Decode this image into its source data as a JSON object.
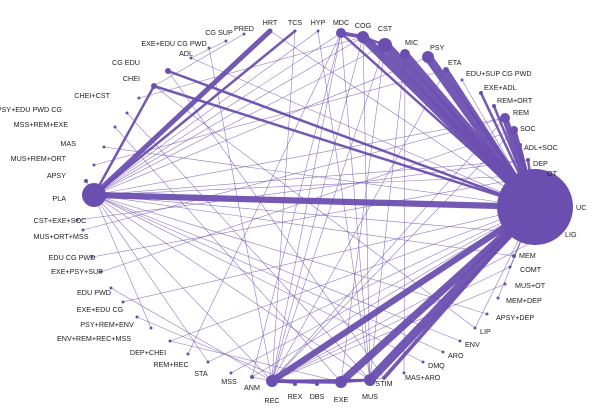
{
  "diagram": {
    "type": "network-meta-analysis",
    "colors": {
      "node": "#6b4fb0",
      "edge": "#6b4fb0",
      "label": "#222222"
    },
    "nodes": [
      {
        "id": "HRT",
        "label": "HRT"
      },
      {
        "id": "TCS",
        "label": "TCS"
      },
      {
        "id": "HYP",
        "label": "HYP"
      },
      {
        "id": "MDC",
        "label": "MDC"
      },
      {
        "id": "COG",
        "label": "COG"
      },
      {
        "id": "CST",
        "label": "CST"
      },
      {
        "id": "MIC",
        "label": "MIC"
      },
      {
        "id": "PSY",
        "label": "PSY"
      },
      {
        "id": "ETA",
        "label": "ETA"
      },
      {
        "id": "EDU+SUP CG PWD",
        "label": "EDU+SUP CG PWD"
      },
      {
        "id": "EXE+ADL",
        "label": "EXE+ADL"
      },
      {
        "id": "REM+ORT",
        "label": "REM+ORT"
      },
      {
        "id": "REM",
        "label": "REM"
      },
      {
        "id": "SOC",
        "label": "SOC"
      },
      {
        "id": "ADL+SOC",
        "label": "ADL+SOC"
      },
      {
        "id": "DEP",
        "label": "DEP"
      },
      {
        "id": "OT",
        "label": "OT"
      },
      {
        "id": "UC",
        "label": "UC"
      },
      {
        "id": "LIG",
        "label": "LIG"
      },
      {
        "id": "MEM",
        "label": "MEM"
      },
      {
        "id": "COMT",
        "label": "COMT"
      },
      {
        "id": "MUS+OT",
        "label": "MUS+OT"
      },
      {
        "id": "MEM+DEP",
        "label": "MEM+DEP"
      },
      {
        "id": "APSY+DEP",
        "label": "APSY+DEP"
      },
      {
        "id": "LIP",
        "label": "LIP"
      },
      {
        "id": "ENV",
        "label": "ENV"
      },
      {
        "id": "ARO",
        "label": "ARO"
      },
      {
        "id": "DMQ",
        "label": "DMQ"
      },
      {
        "id": "MAS+ARO",
        "label": "MAS+ARO"
      },
      {
        "id": "STIM",
        "label": "STIM"
      },
      {
        "id": "MUS",
        "label": "MUS"
      },
      {
        "id": "EXE",
        "label": "EXE"
      },
      {
        "id": "DBS",
        "label": "DBS"
      },
      {
        "id": "REX",
        "label": "REX"
      },
      {
        "id": "REC",
        "label": "REC"
      },
      {
        "id": "ANM",
        "label": "ANM"
      },
      {
        "id": "MSS",
        "label": "MSS"
      },
      {
        "id": "STA",
        "label": "STA"
      },
      {
        "id": "REM+REC",
        "label": "REM+REC"
      },
      {
        "id": "DEP+CHEI",
        "label": "DEP+CHEI"
      },
      {
        "id": "ENV+REM+REC+MSS",
        "label": "ENV+REM+REC+MSS"
      },
      {
        "id": "PSY+REM+ENV",
        "label": "PSY+REM+ENV"
      },
      {
        "id": "EXE+EDU CG",
        "label": "EXE+EDU CG"
      },
      {
        "id": "EDU PWD",
        "label": "EDU PWD"
      },
      {
        "id": "EXE+PSY+SUP",
        "label": "EXE+PSY+SUP"
      },
      {
        "id": "EDU CG PWD",
        "label": "EDU CG PWD"
      },
      {
        "id": "MUS+ORT+MSS",
        "label": "MUS+ORT+MSS"
      },
      {
        "id": "CST+EXE+SOC",
        "label": "CST+EXE+SOC"
      },
      {
        "id": "PLA",
        "label": "PLA"
      },
      {
        "id": "APSY",
        "label": "APSY"
      },
      {
        "id": "MUS+REM+ORT",
        "label": "MUS+REM+ORT"
      },
      {
        "id": "MAS",
        "label": "MAS"
      },
      {
        "id": "MSS+REM+EXE",
        "label": "MSS+REM+EXE"
      },
      {
        "id": "PSY+EDU PWD CG",
        "label": "PSY+EDU PWD CG"
      },
      {
        "id": "CHEI+CST",
        "label": "CHEI+CST"
      },
      {
        "id": "CHEI",
        "label": "CHEI"
      },
      {
        "id": "CG EDU",
        "label": "CG EDU"
      },
      {
        "id": "ADL",
        "label": "ADL"
      },
      {
        "id": "EXE+EDU CG PWD",
        "label": "EXE+EDU CG PWD"
      },
      {
        "id": "CG SUP",
        "label": "CG SUP"
      },
      {
        "id": "PRED",
        "label": "PRED"
      }
    ],
    "edges": [
      {
        "from": "UC",
        "to": "PLA",
        "weight": 5
      },
      {
        "from": "UC",
        "to": "COG",
        "weight": 7
      },
      {
        "from": "UC",
        "to": "CST",
        "weight": 8
      },
      {
        "from": "UC",
        "to": "MIC",
        "weight": 6
      },
      {
        "from": "UC",
        "to": "PSY",
        "weight": 7
      },
      {
        "from": "UC",
        "to": "ETA",
        "weight": 4
      },
      {
        "from": "UC",
        "to": "REM",
        "weight": 5
      },
      {
        "from": "UC",
        "to": "SOC",
        "weight": 4
      },
      {
        "from": "UC",
        "to": "EXE+ADL",
        "weight": 2
      },
      {
        "from": "UC",
        "to": "REM+ORT",
        "weight": 2
      },
      {
        "from": "UC",
        "to": "ADL+SOC",
        "weight": 2
      },
      {
        "from": "UC",
        "to": "DEP",
        "weight": 2
      },
      {
        "from": "UC",
        "to": "OT",
        "weight": 3
      },
      {
        "from": "UC",
        "to": "LIG",
        "weight": 2
      },
      {
        "from": "UC",
        "to": "MEM",
        "weight": 1
      },
      {
        "from": "UC",
        "to": "EXE",
        "weight": 6
      },
      {
        "from": "UC",
        "to": "MUS",
        "weight": 7
      },
      {
        "from": "UC",
        "to": "REC",
        "weight": 5
      },
      {
        "from": "UC",
        "to": "STIM",
        "weight": 3
      },
      {
        "from": "UC",
        "to": "MDC",
        "weight": 2
      },
      {
        "from": "UC",
        "to": "HRT",
        "weight": 1
      },
      {
        "from": "UC",
        "to": "CHEI",
        "weight": 2
      },
      {
        "from": "UC",
        "to": "CG EDU",
        "weight": 1
      },
      {
        "from": "UC",
        "to": "EDU+SUP CG PWD",
        "weight": 1
      },
      {
        "from": "UC",
        "to": "COMT",
        "weight": 1
      },
      {
        "from": "UC",
        "to": "MEM+DEP",
        "weight": 1
      },
      {
        "from": "UC",
        "to": "LIP",
        "weight": 1
      },
      {
        "from": "UC",
        "to": "DEP+CHEI",
        "weight": 1
      },
      {
        "from": "UC",
        "to": "EXE+EDU CG",
        "weight": 1
      },
      {
        "from": "UC",
        "to": "MAS",
        "weight": 1
      },
      {
        "from": "PLA",
        "to": "HRT",
        "weight": 4
      },
      {
        "from": "PLA",
        "to": "TCS",
        "weight": 2
      },
      {
        "from": "PLA",
        "to": "HYP",
        "weight": 1
      },
      {
        "from": "PLA",
        "to": "CHEI",
        "weight": 2
      },
      {
        "from": "PLA",
        "to": "APSY",
        "weight": 1
      },
      {
        "from": "PLA",
        "to": "MUS",
        "weight": 1
      },
      {
        "from": "PLA",
        "to": "REC",
        "weight": 1
      },
      {
        "from": "PLA",
        "to": "DEP",
        "weight": 1
      },
      {
        "from": "PLA",
        "to": "LIG",
        "weight": 1
      },
      {
        "from": "PLA",
        "to": "MDC",
        "weight": 1
      },
      {
        "from": "PLA",
        "to": "ENV+REM+REC+MSS",
        "weight": 1
      },
      {
        "from": "PLA",
        "to": "STA",
        "weight": 1
      },
      {
        "from": "PLA",
        "to": "COG",
        "weight": 1
      },
      {
        "from": "MDC",
        "to": "COG",
        "weight": 3
      },
      {
        "from": "MDC",
        "to": "MUS",
        "weight": 1
      },
      {
        "from": "MDC",
        "to": "REC",
        "weight": 1
      },
      {
        "from": "MDC",
        "to": "ANM",
        "weight": 1
      },
      {
        "from": "COG",
        "to": "CST",
        "weight": 2
      },
      {
        "from": "COG",
        "to": "MUS",
        "weight": 1
      },
      {
        "from": "COG",
        "to": "REC",
        "weight": 1
      },
      {
        "from": "CST",
        "to": "EXE",
        "weight": 1
      },
      {
        "from": "CST",
        "to": "PLA",
        "weight": 1
      },
      {
        "from": "CST",
        "to": "REC",
        "weight": 1
      },
      {
        "from": "MIC",
        "to": "MUS",
        "weight": 1
      },
      {
        "from": "CG EDU",
        "to": "UC",
        "weight": 2
      },
      {
        "from": "CG SUP",
        "to": "ADL",
        "weight": 1
      },
      {
        "from": "PRED",
        "to": "CHEI",
        "weight": 1
      },
      {
        "from": "REC",
        "to": "EXE",
        "weight": 3
      },
      {
        "from": "REC",
        "to": "MUS",
        "weight": 2
      },
      {
        "from": "REC",
        "to": "ANM",
        "weight": 1
      },
      {
        "from": "REC",
        "to": "REX",
        "weight": 1
      },
      {
        "from": "REC",
        "to": "DBS",
        "weight": 1
      },
      {
        "from": "EXE",
        "to": "MUS",
        "weight": 2
      },
      {
        "from": "EXE",
        "to": "STIM",
        "weight": 1
      },
      {
        "from": "REM",
        "to": "PLA",
        "weight": 1
      },
      {
        "from": "REM",
        "to": "REC",
        "weight": 1
      },
      {
        "from": "SOC",
        "to": "REC",
        "weight": 1
      },
      {
        "from": "PSY",
        "to": "PLA",
        "weight": 1
      },
      {
        "from": "ETA",
        "to": "REC",
        "weight": 1
      },
      {
        "from": "ENV",
        "to": "PLA",
        "weight": 1
      },
      {
        "from": "ARO",
        "to": "PLA",
        "weight": 1
      },
      {
        "from": "LIG",
        "to": "REC",
        "weight": 1
      },
      {
        "from": "OT",
        "to": "PLA",
        "weight": 1
      },
      {
        "from": "MUS+OT",
        "to": "REC",
        "weight": 1
      },
      {
        "from": "APSY+DEP",
        "to": "PLA",
        "weight": 1
      },
      {
        "from": "DMQ",
        "to": "PLA",
        "weight": 1
      },
      {
        "from": "MAS+ARO",
        "to": "MIC",
        "weight": 1
      },
      {
        "from": "STIM",
        "to": "CG EDU",
        "weight": 1
      },
      {
        "from": "EDU PWD",
        "to": "REC",
        "weight": 1
      },
      {
        "from": "EXE+PSY+SUP",
        "to": "SOC",
        "weight": 1
      },
      {
        "from": "EDU CG PWD",
        "to": "OT",
        "weight": 1
      },
      {
        "from": "MUS+ORT+MSS",
        "to": "REM",
        "weight": 1
      },
      {
        "from": "CST+EXE+SOC",
        "to": "DEP",
        "weight": 1
      },
      {
        "from": "MUS+REM+ORT",
        "to": "ETA",
        "weight": 1
      },
      {
        "from": "MSS+REM+EXE",
        "to": "EXE",
        "weight": 1
      },
      {
        "from": "PSY+EDU PWD CG",
        "to": "MUS",
        "weight": 1
      },
      {
        "from": "CHEI+CST",
        "to": "COG",
        "weight": 1
      },
      {
        "from": "EXE+EDU CG PWD",
        "to": "REC",
        "weight": 1
      },
      {
        "from": "REM+REC",
        "to": "MDC",
        "weight": 1
      },
      {
        "from": "PSY+REM+ENV",
        "to": "REX",
        "weight": 1
      },
      {
        "from": "TCS",
        "to": "REC",
        "weight": 1
      },
      {
        "from": "HYP",
        "to": "MUS",
        "weight": 1
      },
      {
        "from": "MSS",
        "to": "UC",
        "weight": 1
      },
      {
        "from": "DEP+CHEI",
        "to": "EXE",
        "weight": 1
      },
      {
        "from": "ADL",
        "to": "UC",
        "weight": 1
      },
      {
        "from": "MEM",
        "to": "PLA",
        "weight": 1
      },
      {
        "from": "COMT",
        "to": "REC",
        "weight": 1
      },
      {
        "from": "LIP",
        "to": "CHEI",
        "weight": 1
      },
      {
        "from": "STA",
        "to": "UC",
        "weight": 1
      },
      {
        "from": "ANM",
        "to": "UC",
        "weight": 1
      }
    ]
  }
}
